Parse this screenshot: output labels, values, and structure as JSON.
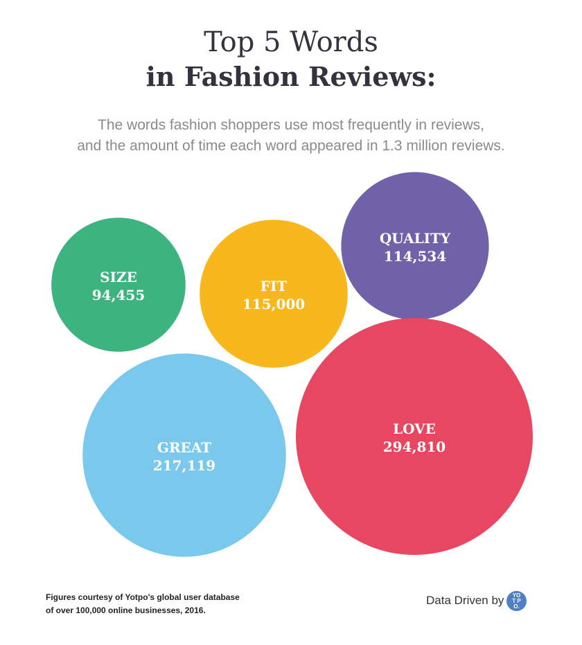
{
  "title_line1": "Top 5 Words",
  "title_line2": "in Fashion Reviews:",
  "subtitle_line1": "The words fashion shoppers use most frequently in reviews,",
  "subtitle_line2": "and the amount of time each word appeared in 1.3 million reviews.",
  "chart_data": {
    "type": "bubble",
    "title": "Top 5 Words in Fashion Reviews:",
    "categories": [
      "SIZE",
      "FIT",
      "QUALITY",
      "GREAT",
      "LOVE"
    ],
    "values": [
      94455,
      115000,
      114534,
      217119,
      294810
    ],
    "value_labels": [
      "94,455",
      "115,000",
      "114,534",
      "217,119",
      "294,810"
    ],
    "colors": [
      "#3db380",
      "#f8b71c",
      "#7062a8",
      "#7bc8ed",
      "#e84762"
    ]
  },
  "footer": {
    "source_line1": "Figures courtesy of Yotpo's global user database",
    "source_line2": "of over 100,000 online businesses, 2016.",
    "credit": "Data Driven by",
    "logo_text": "YOTPO."
  }
}
